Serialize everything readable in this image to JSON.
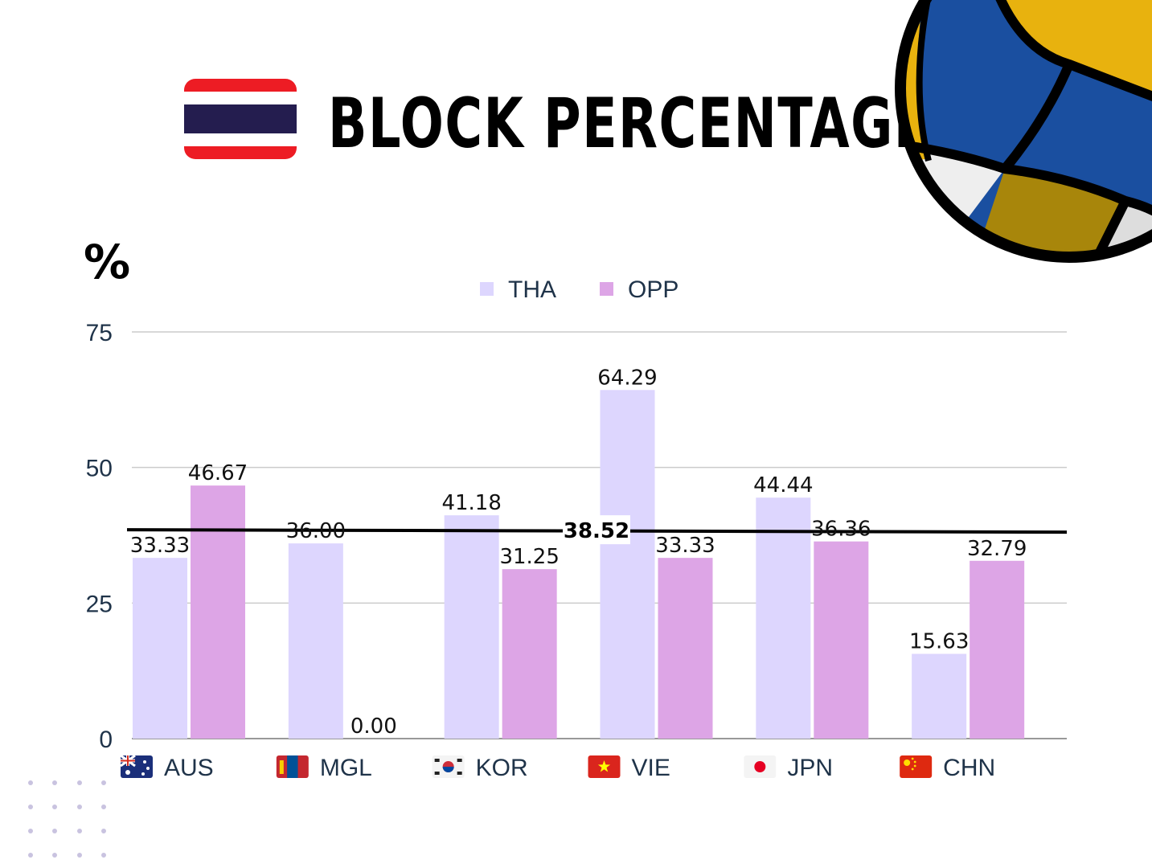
{
  "title": "BLOCK PERCENTAGE",
  "flag_icon": "thailand-flag-icon",
  "decoration_icon": "volleyball-icon",
  "colors": {
    "tha": "#ddd6fe",
    "opp": "#dda5e6",
    "average_line": "#000000",
    "grid": "#cccccc",
    "volleyball_blue": "#1a4fa0",
    "volleyball_yellow": "#e8b20e"
  },
  "chart_data": {
    "type": "bar",
    "ylabel": "%",
    "ylim": [
      0,
      75
    ],
    "yticks": [
      "0",
      "25",
      "50",
      "75"
    ],
    "grid": true,
    "legend_position": "top",
    "categories": [
      "AUS",
      "MGL",
      "KOR",
      "VIE",
      "JPN",
      "CHN"
    ],
    "category_icons": [
      "australia-flag-icon",
      "mongolia-flag-icon",
      "korea-flag-icon",
      "vietnam-flag-icon",
      "japan-flag-icon",
      "china-flag-icon"
    ],
    "series": [
      {
        "name": "THA",
        "values": [
          33.33,
          36.0,
          41.18,
          64.29,
          44.44,
          15.63
        ],
        "labels": [
          "33.33",
          "36.00",
          "41.18",
          "64.29",
          "44.44",
          "15.63"
        ]
      },
      {
        "name": "OPP",
        "values": [
          46.67,
          0.0,
          31.25,
          33.33,
          36.36,
          32.79
        ],
        "labels": [
          "46.67",
          "0.00",
          "31.25",
          "33.33",
          "36.36",
          "32.79"
        ]
      }
    ],
    "average_line": {
      "value": 38.52,
      "label": "38.52"
    }
  }
}
